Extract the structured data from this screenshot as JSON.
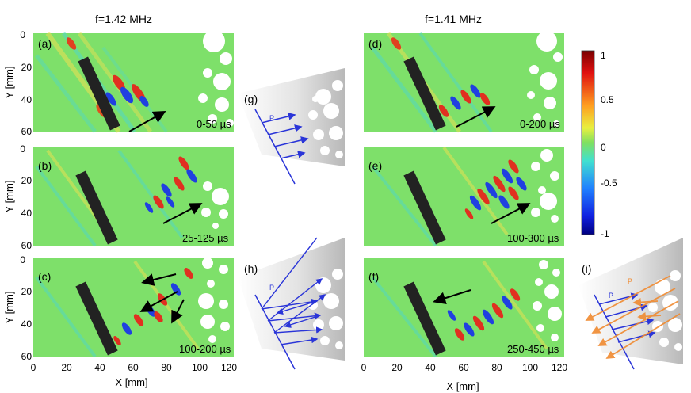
{
  "titles": {
    "left": "f=1.42 MHz",
    "right": "f=1.41 MHz"
  },
  "axes": {
    "xlabel": "X [mm]",
    "ylabel": "Y [mm]",
    "xticks": [
      "0",
      "20",
      "40",
      "60",
      "80",
      "100",
      "120"
    ],
    "yticks": [
      "0",
      "20",
      "40",
      "60"
    ]
  },
  "panels": [
    {
      "id": "a",
      "label": "(a)",
      "time": "0-50 µs"
    },
    {
      "id": "b",
      "label": "(b)",
      "time": "25-125 µs"
    },
    {
      "id": "c",
      "label": "(c)",
      "time": "100-200 µs"
    },
    {
      "id": "d",
      "label": "(d)",
      "time": "0-200 µs"
    },
    {
      "id": "e",
      "label": "(e)",
      "time": "100-300 µs"
    },
    {
      "id": "f",
      "label": "(f)",
      "time": "250-450 µs"
    }
  ],
  "schematics": [
    {
      "id": "g",
      "label": "(g)",
      "ray_labels": [
        "P"
      ]
    },
    {
      "id": "h",
      "label": "(h)",
      "ray_labels": [
        "P"
      ]
    },
    {
      "id": "i",
      "label": "(i)",
      "ray_labels": [
        "P",
        "P"
      ]
    }
  ],
  "colorbar": {
    "ticks": [
      "1",
      "0.5",
      "0",
      "-0.5",
      "-1"
    ]
  },
  "colors": {
    "blue_ray": "#2a35d8",
    "orange_ray": "#f08a30",
    "transducer": "#222222",
    "field_bg": "#7ee06a"
  }
}
